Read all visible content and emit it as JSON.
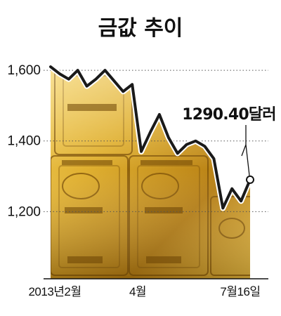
{
  "chart_data": {
    "type": "line",
    "title": "금값 추이",
    "x_tick_labels": [
      "2013년2월",
      "4월",
      "7월16일"
    ],
    "y_ticks": [
      1200,
      1400,
      1600
    ],
    "y_tick_labels": [
      "1,200",
      "1,400",
      "1,600"
    ],
    "ylim": [
      1010,
      1630
    ],
    "grid": true,
    "series": [
      {
        "values": [
          1610,
          1590,
          1575,
          1600,
          1555,
          1575,
          1600,
          1570,
          1540,
          1560,
          1370,
          1425,
          1475,
          1410,
          1365,
          1390,
          1400,
          1385,
          1350,
          1210,
          1265,
          1230,
          1290.4
        ]
      }
    ],
    "annotation": {
      "value": 1290.4,
      "label": "1290.40달러"
    },
    "colors": {
      "line": "#1a1a1a",
      "gold_light": "#f7d66a",
      "gold_mid": "#d9a520",
      "gold_dark": "#8a5c08"
    }
  }
}
